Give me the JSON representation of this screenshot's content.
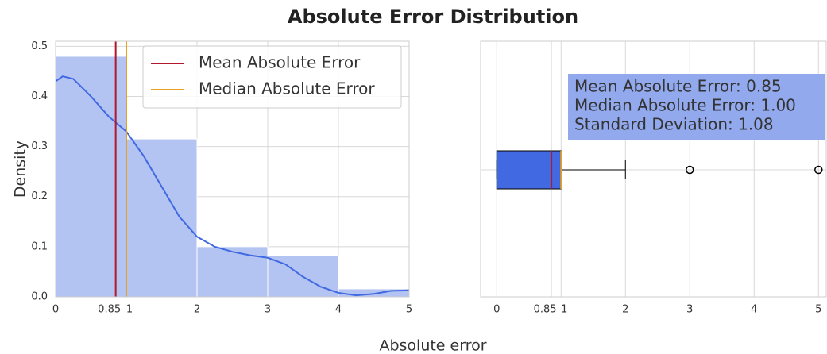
{
  "title": "Absolute Error Distribution",
  "xlabel": "Absolute error",
  "chart_data": [
    {
      "type": "histogram",
      "ylabel": "Density",
      "bins": [
        0,
        1,
        2,
        3,
        4,
        5
      ],
      "values": [
        0.48,
        0.315,
        0.1,
        0.082,
        0.016
      ],
      "color": "#b3c3f2",
      "kde": {
        "x": [
          0,
          0.1,
          0.25,
          0.5,
          0.75,
          1,
          1.25,
          1.5,
          1.75,
          2,
          2.25,
          2.5,
          2.75,
          3,
          3.25,
          3.5,
          3.75,
          4,
          4.25,
          4.5,
          4.75,
          5
        ],
        "values": [
          0.43,
          0.44,
          0.435,
          0.4,
          0.36,
          0.33,
          0.28,
          0.22,
          0.16,
          0.12,
          0.1,
          0.09,
          0.083,
          0.078,
          0.065,
          0.04,
          0.02,
          0.008,
          0.003,
          0.006,
          0.012,
          0.013
        ],
        "color": "#4169e1"
      },
      "lines": [
        {
          "name": "Mean Absolute Error",
          "value": 0.85,
          "color": "#b2182b"
        },
        {
          "name": "Median Absolute Error",
          "value": 1.0,
          "color": "#e8a020"
        }
      ],
      "xlim": [
        0,
        5
      ],
      "xticks": [
        0,
        0.85,
        1,
        2,
        3,
        4,
        5
      ],
      "ylim": [
        0,
        0.51
      ],
      "yticks": [
        {
          "value": 0,
          "label": "0.0"
        },
        0.1,
        0.2,
        0.3,
        0.4,
        0.5
      ],
      "grid": true,
      "legend": "upper right"
    },
    {
      "type": "box",
      "whislo": 0,
      "q1": 0,
      "median": 1,
      "q3": 1,
      "whishi": 2,
      "fliers": [
        3,
        5
      ],
      "mean": 0.85,
      "color": "#4169e1",
      "median_color": "#e8a020",
      "mean_color": "#b2182b",
      "xlim": [
        -0.25,
        5.12
      ],
      "xticks": [
        0,
        0.85,
        1,
        2,
        3,
        4,
        5
      ],
      "grid": true,
      "annotation": [
        "Mean Absolute Error: 0.85",
        "Median Absolute Error: 1.00",
        "Standard Deviation: 1.08"
      ]
    }
  ]
}
